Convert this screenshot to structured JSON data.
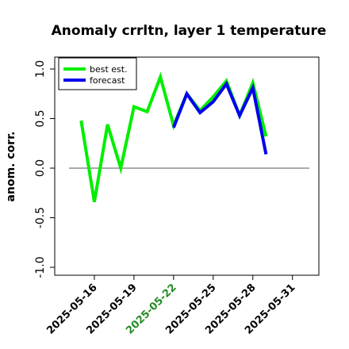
{
  "chart_data": {
    "type": "line",
    "title": "Anomaly crrltn, layer 1 temperature",
    "ylabel": "anom. corr.",
    "x": [
      "2025-05-15",
      "2025-05-16",
      "2025-05-17",
      "2025-05-18",
      "2025-05-19",
      "2025-05-20",
      "2025-05-21",
      "2025-05-22",
      "2025-05-23",
      "2025-05-24",
      "2025-05-25",
      "2025-05-26",
      "2025-05-27",
      "2025-05-28",
      "2025-05-29"
    ],
    "series": [
      {
        "name": "best est.",
        "color": "#00ee00",
        "values": [
          0.48,
          -0.34,
          0.44,
          0.0,
          0.62,
          0.57,
          0.92,
          0.43,
          0.75,
          0.58,
          0.72,
          0.88,
          0.53,
          0.86,
          0.32
        ]
      },
      {
        "name": "forecast",
        "color": "#0000ee",
        "values": [
          null,
          null,
          null,
          null,
          null,
          null,
          null,
          0.41,
          0.75,
          0.56,
          0.67,
          0.85,
          0.53,
          0.81,
          0.14
        ]
      }
    ],
    "xlim": [
      "2025-05-13",
      "2025-06-02"
    ],
    "xticks": [
      "2025-05-16",
      "2025-05-19",
      "2025-05-22",
      "2025-05-25",
      "2025-05-28",
      "2025-05-31"
    ],
    "xtick_label_colors": [
      "#000000",
      "#000000",
      "#228b22",
      "#000000",
      "#000000",
      "#000000"
    ],
    "ylim": [
      -1.08,
      1.12
    ],
    "yticks": [
      {
        "value": -1,
        "label": "-1.0"
      },
      {
        "value": -0.5,
        "label": "-0.5"
      },
      {
        "value": 0,
        "label": "0.0"
      },
      {
        "value": 0.5,
        "label": "0.5"
      },
      {
        "value": 1,
        "label": "1.0"
      }
    ],
    "reference_line": 0,
    "legend": "top-left"
  }
}
